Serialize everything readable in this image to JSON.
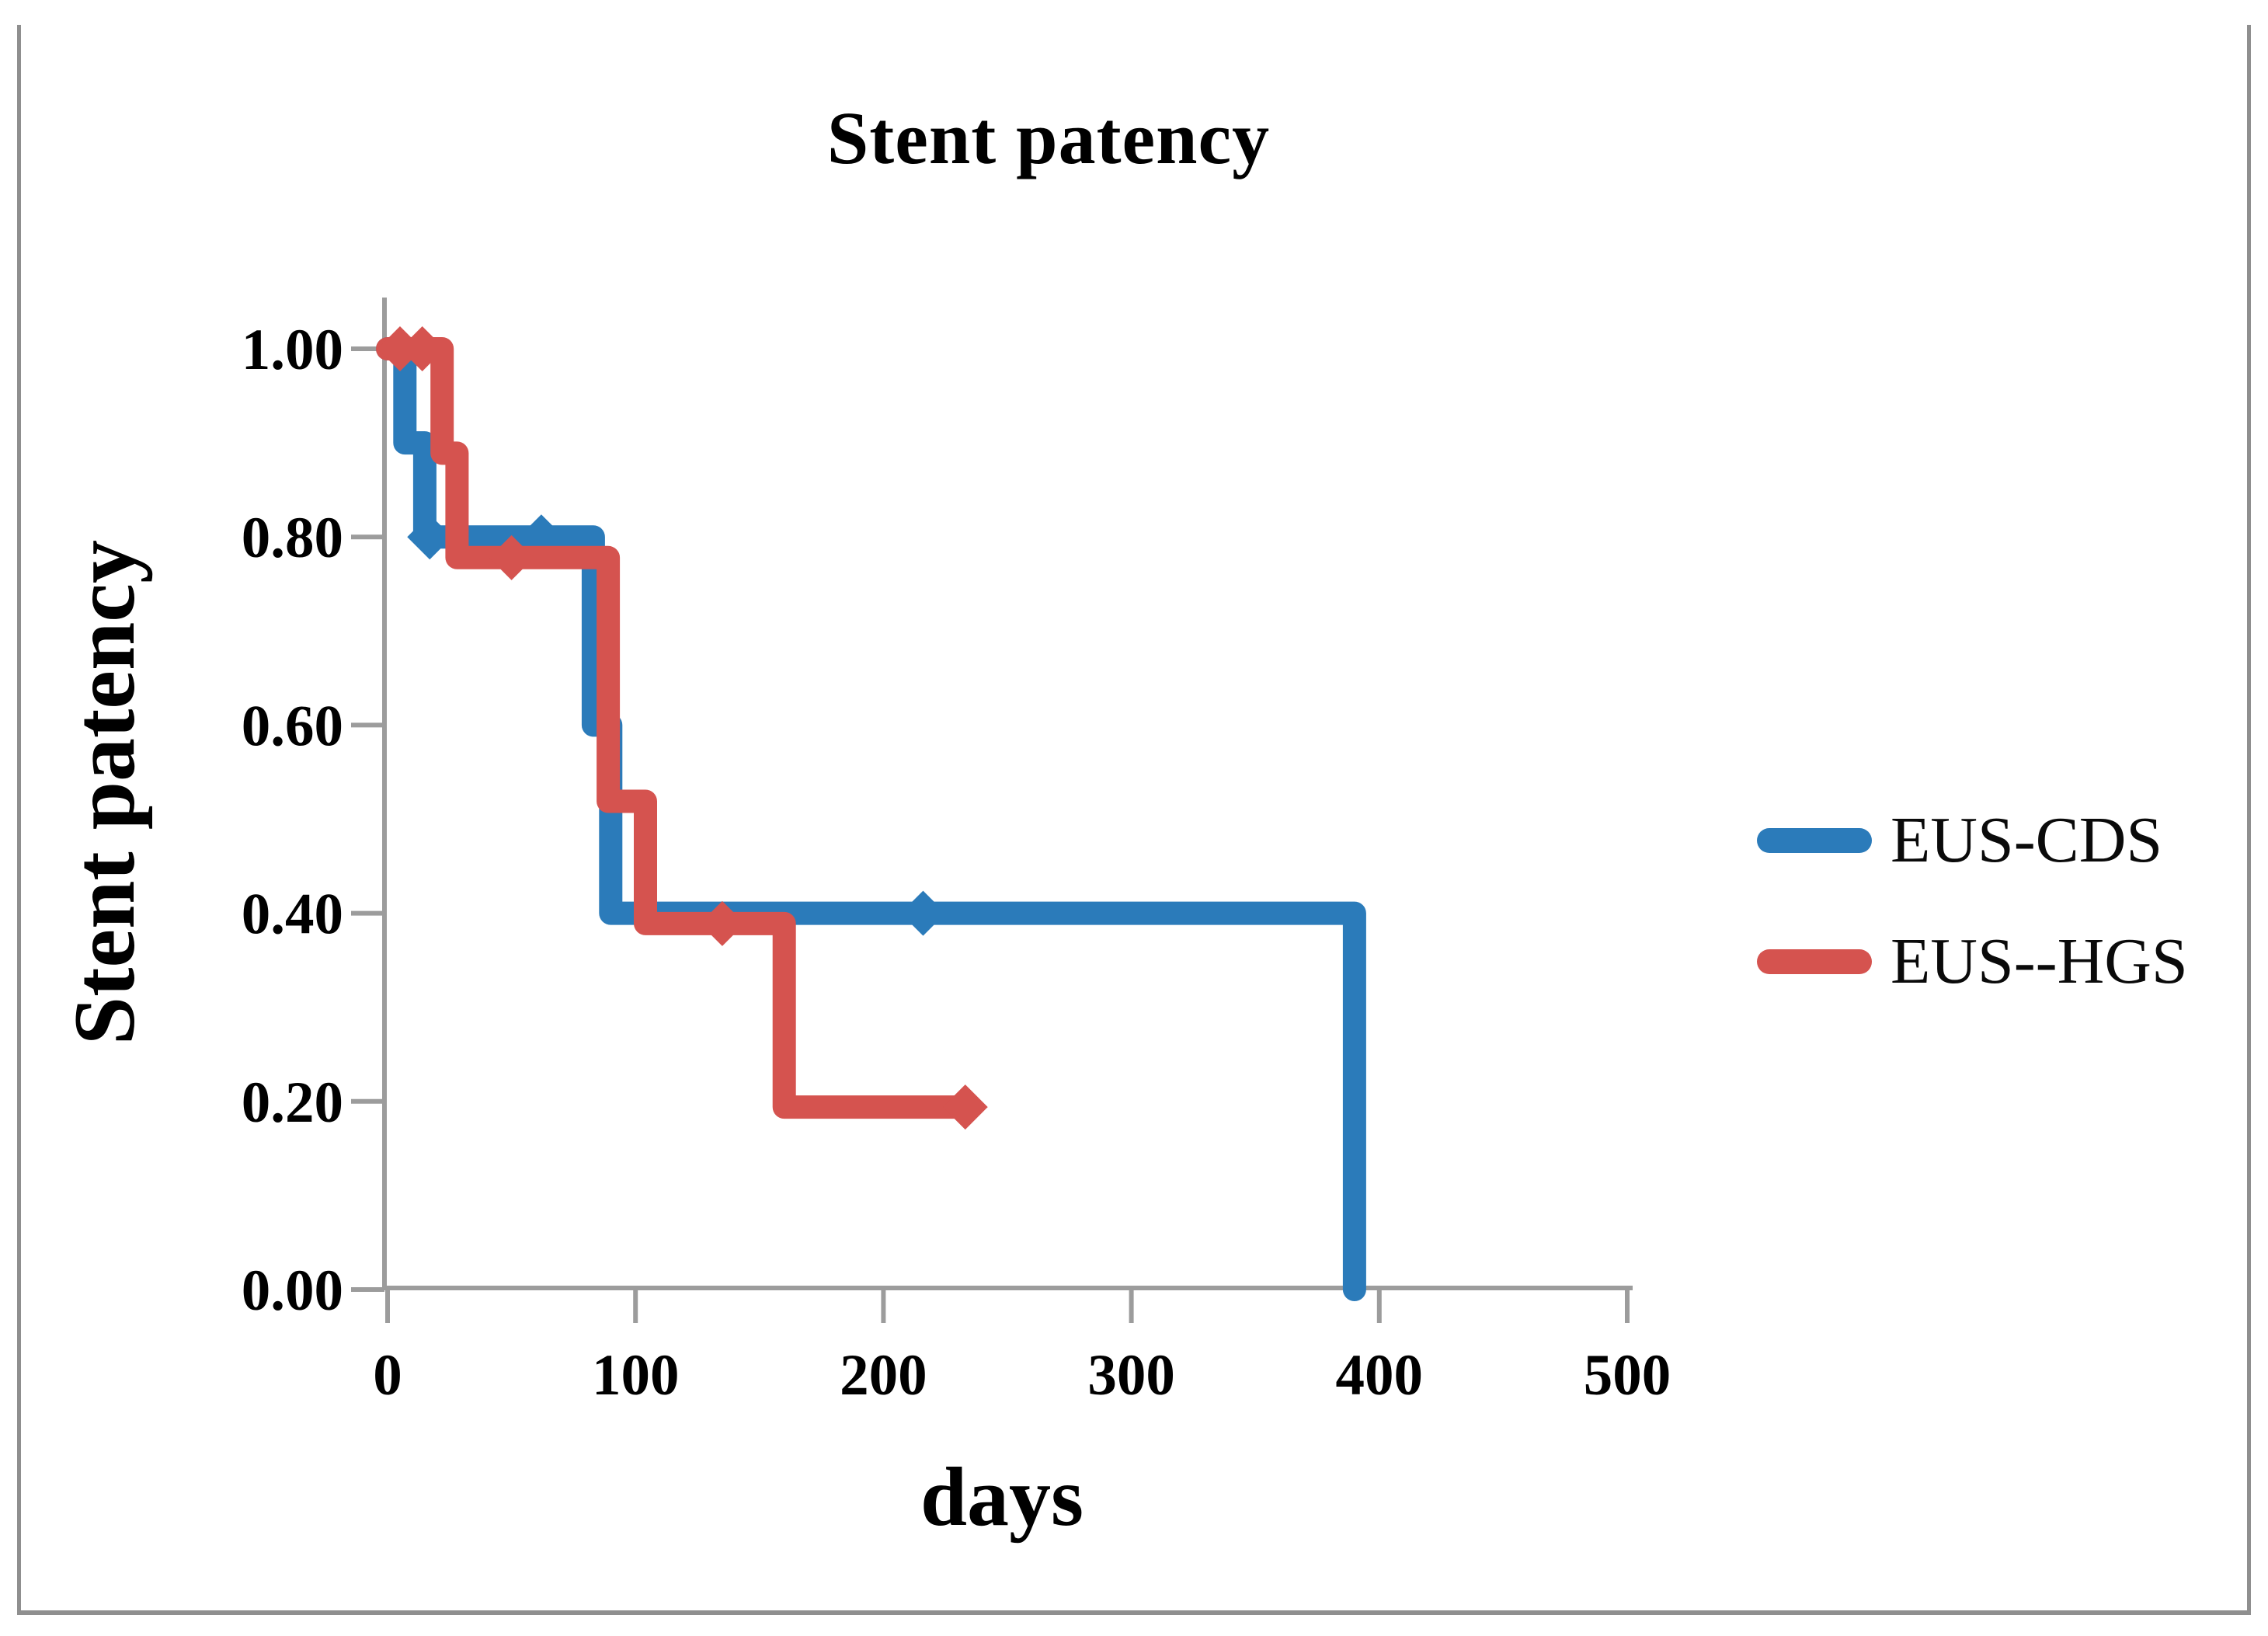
{
  "figure": {
    "title": "Stent patency",
    "background": "#ffffff",
    "border_color": "#8f8f8f",
    "axis_color": "#9c9c9c",
    "text_color": "#000000"
  },
  "legend": {
    "position": "right",
    "items": [
      {
        "label": "EUS-CDS",
        "color": "#2B7BBA"
      },
      {
        "label": "EUS--HGS",
        "color": "#D5534F"
      }
    ]
  },
  "chart_data": {
    "type": "line",
    "subtype": "kaplan-meier-step",
    "title": "Stent patency",
    "xlabel": "days",
    "ylabel": "Stent patency",
    "xlim": [
      0,
      500
    ],
    "ylim": [
      0.0,
      1.0
    ],
    "grid": false,
    "legend_position": "right-middle",
    "x_ticks": [
      [
        0,
        "0"
      ],
      [
        100,
        "100"
      ],
      [
        200,
        "200"
      ],
      [
        300,
        "300"
      ],
      [
        400,
        "400"
      ],
      [
        500,
        "500"
      ]
    ],
    "y_ticks": [
      [
        1.0,
        "1.00"
      ],
      [
        0.8,
        "0.80"
      ],
      [
        0.6,
        "0.60"
      ],
      [
        0.4,
        "0.40"
      ],
      [
        0.2,
        "0.20"
      ],
      [
        0.0,
        "0.00"
      ]
    ],
    "series": [
      {
        "name": "EUS-CDS",
        "color": "#2B7BBA",
        "step_points": [
          [
            0,
            1.0
          ],
          [
            7,
            1.0
          ],
          [
            7,
            0.9
          ],
          [
            15,
            0.9
          ],
          [
            15,
            0.8
          ],
          [
            83,
            0.8
          ],
          [
            83,
            0.6
          ],
          [
            90,
            0.6
          ],
          [
            90,
            0.4
          ],
          [
            390,
            0.4
          ],
          [
            390,
            0.0
          ]
        ],
        "censor_markers": [
          [
            17,
            0.8
          ],
          [
            62,
            0.8
          ],
          [
            216,
            0.4
          ]
        ]
      },
      {
        "name": "EUS--HGS",
        "color": "#D5534F",
        "step_points": [
          [
            0,
            1.0
          ],
          [
            22,
            1.0
          ],
          [
            22,
            0.889
          ],
          [
            28,
            0.889
          ],
          [
            28,
            0.778
          ],
          [
            89,
            0.778
          ],
          [
            89,
            0.519
          ],
          [
            104,
            0.519
          ],
          [
            104,
            0.389
          ],
          [
            160,
            0.389
          ],
          [
            160,
            0.194
          ],
          [
            233,
            0.194
          ]
        ],
        "censor_markers": [
          [
            5,
            1.0
          ],
          [
            14,
            1.0
          ],
          [
            50,
            0.778
          ],
          [
            135,
            0.389
          ],
          [
            233,
            0.194
          ]
        ]
      }
    ]
  }
}
